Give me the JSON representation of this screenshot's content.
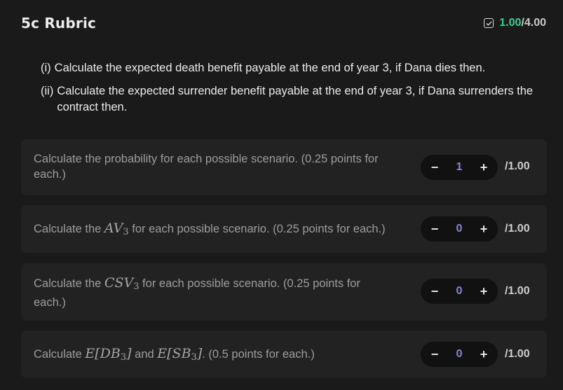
{
  "header": {
    "title": "5c Rubric",
    "score_earned": "1.00",
    "score_total": "/4.00"
  },
  "question": {
    "part1_num": "(i)",
    "part1_text": "Calculate the expected death benefit payable at the end of year 3, if Dana dies then.",
    "part2_num": "(ii)",
    "part2_text": "Calculate the expected surrender benefit payable at the end of year 3, if Dana surrenders the contract then."
  },
  "criteria": [
    {
      "pre": "Calculate the probability for each possible scenario. (0.25 points for each.)",
      "value": "1",
      "max": "/1.00"
    },
    {
      "pre": "Calculate the ",
      "sym": "AV",
      "sub": "3",
      "post": " for each possible scenario. (0.25 points for each.)",
      "value": "0",
      "max": "/1.00"
    },
    {
      "pre": "Calculate the ",
      "sym": "CSV",
      "sub": "3",
      "post": " for each possible scenario. (0.25 points for each.)",
      "value": "0",
      "max": "/1.00"
    },
    {
      "pre": "Calculate ",
      "math1": "E[DB",
      "sub1": "3",
      "close1": "]",
      "and": " and ",
      "math2": "E[SB",
      "sub2": "3",
      "close2": "]",
      "post": ". (0.5 points for each.)",
      "value": "0",
      "max": "/1.00"
    }
  ],
  "controls": {
    "minus": "−",
    "plus": "+"
  },
  "icons": {
    "score": "checkbox-icon"
  },
  "colors": {
    "earned": "#3ecf8e",
    "value": "#8a86d6"
  }
}
